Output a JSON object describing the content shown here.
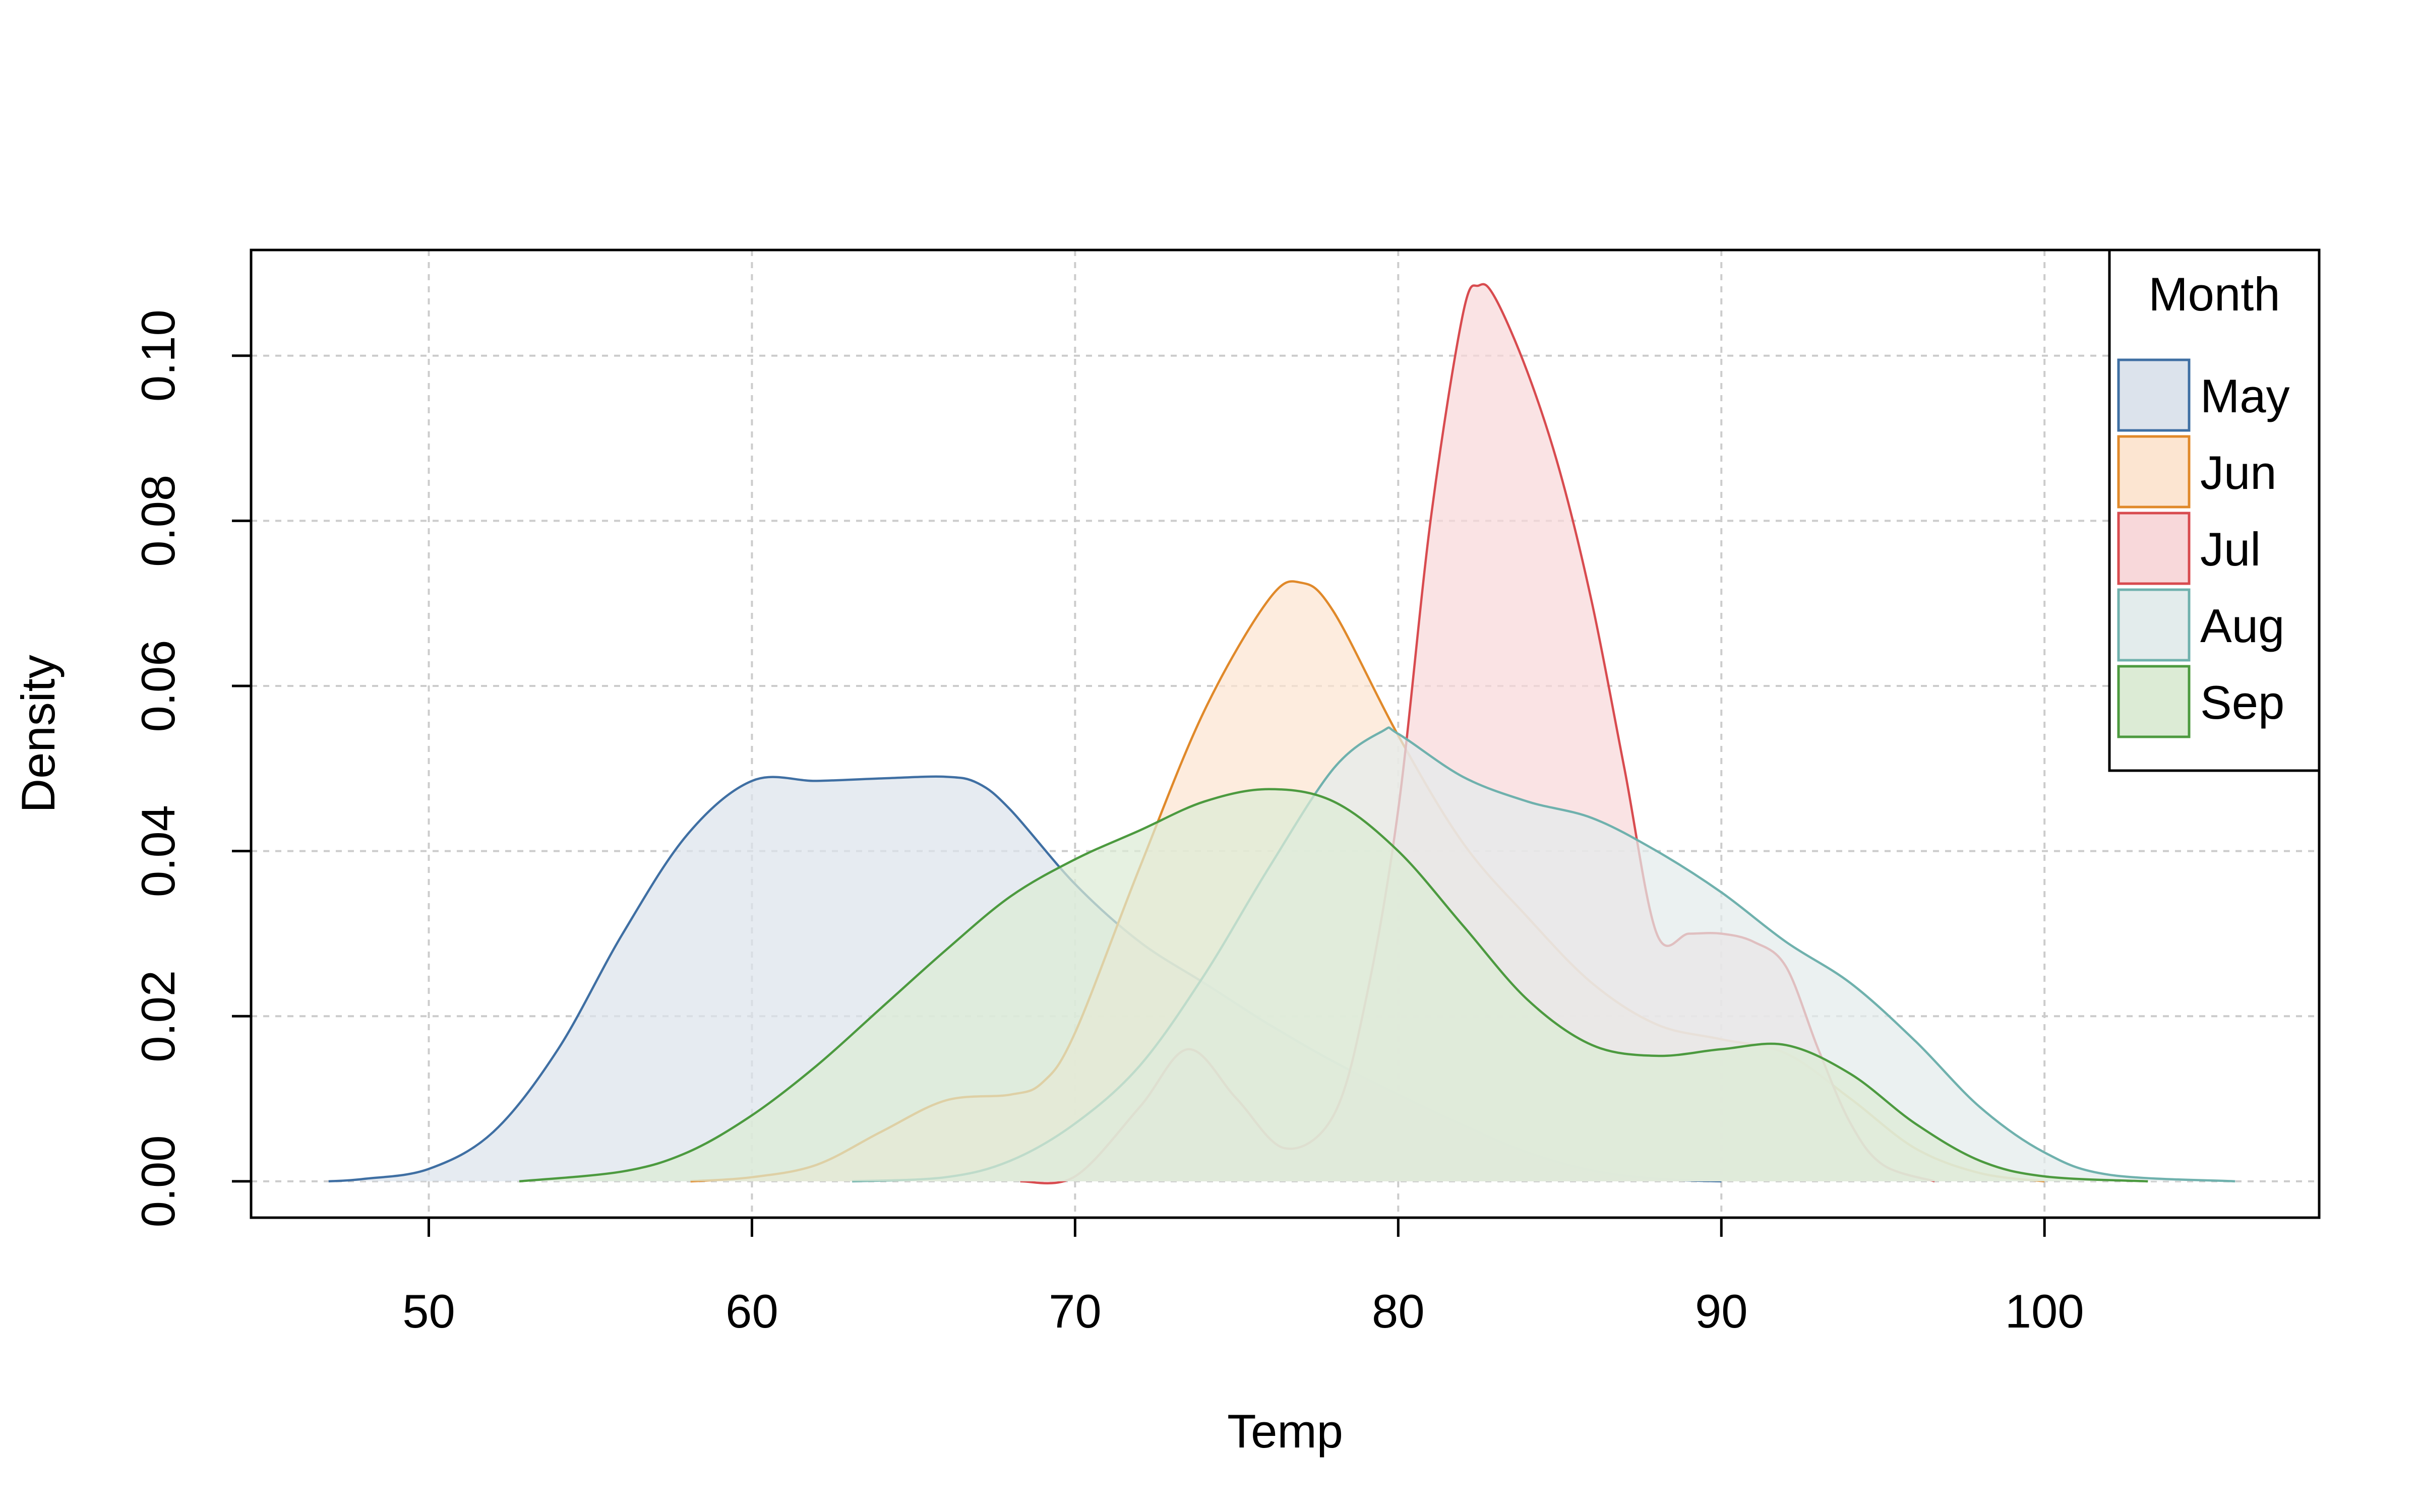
{
  "chart_data": {
    "type": "area",
    "title": "",
    "xlabel": "Temp",
    "ylabel": "Density",
    "xlim": [
      44.5,
      108.5
    ],
    "ylim": [
      -0.0044,
      0.1128
    ],
    "xticks": [
      50,
      60,
      70,
      80,
      90,
      100
    ],
    "xtick_labels": [
      "50",
      "60",
      "70",
      "80",
      "90",
      "100"
    ],
    "yticks": [
      0.0,
      0.02,
      0.04,
      0.06,
      0.08,
      0.1
    ],
    "ytick_labels": [
      "0.00",
      "0.02",
      "0.04",
      "0.06",
      "0.08",
      "0.10"
    ],
    "grid": true,
    "legend": {
      "title": "Month",
      "position": "top-right"
    },
    "series": [
      {
        "name": "May",
        "color": "#3f6fa3",
        "fill": "#dce3ec",
        "points": [
          [
            46.9,
            0.0
          ],
          [
            48,
            0.0003
          ],
          [
            50,
            0.0015
          ],
          [
            52,
            0.006
          ],
          [
            54,
            0.016
          ],
          [
            56,
            0.03
          ],
          [
            58,
            0.042
          ],
          [
            60,
            0.0485
          ],
          [
            62,
            0.0485
          ],
          [
            64,
            0.0488
          ],
          [
            66,
            0.049
          ],
          [
            67,
            0.0482
          ],
          [
            68,
            0.045
          ],
          [
            70,
            0.036
          ],
          [
            72,
            0.029
          ],
          [
            74,
            0.024
          ],
          [
            76,
            0.019
          ],
          [
            78,
            0.0145
          ],
          [
            80,
            0.0105
          ],
          [
            82,
            0.0068
          ],
          [
            84,
            0.0035
          ],
          [
            86,
            0.0013
          ],
          [
            88,
            0.0003
          ],
          [
            90,
            0.0
          ]
        ]
      },
      {
        "name": "Jun",
        "color": "#e0892a",
        "fill": "#fce5d1",
        "points": [
          [
            58.1,
            0.0
          ],
          [
            60,
            0.0005
          ],
          [
            62,
            0.002
          ],
          [
            64,
            0.006
          ],
          [
            66,
            0.0098
          ],
          [
            68,
            0.0105
          ],
          [
            69,
            0.012
          ],
          [
            70,
            0.018
          ],
          [
            72,
            0.038
          ],
          [
            74,
            0.057
          ],
          [
            76,
            0.0705
          ],
          [
            77,
            0.0725
          ],
          [
            78,
            0.069
          ],
          [
            80,
            0.054
          ],
          [
            82,
            0.041
          ],
          [
            84,
            0.032
          ],
          [
            86,
            0.024
          ],
          [
            88,
            0.019
          ],
          [
            90,
            0.0172
          ],
          [
            92,
            0.0155
          ],
          [
            94,
            0.01
          ],
          [
            96,
            0.004
          ],
          [
            98,
            0.001
          ],
          [
            100,
            0.0
          ]
        ]
      },
      {
        "name": "Jul",
        "color": "#d84b4f",
        "fill": "#f8d8da",
        "points": [
          [
            68.3,
            0.0
          ],
          [
            70,
            0.0006
          ],
          [
            72,
            0.009
          ],
          [
            73.5,
            0.016
          ],
          [
            75,
            0.01
          ],
          [
            76.5,
            0.004
          ],
          [
            78,
            0.008
          ],
          [
            79,
            0.022
          ],
          [
            80,
            0.045
          ],
          [
            81,
            0.08
          ],
          [
            82,
            0.105
          ],
          [
            82.5,
            0.1085
          ],
          [
            83,
            0.107
          ],
          [
            84,
            0.098
          ],
          [
            85,
            0.086
          ],
          [
            86,
            0.07
          ],
          [
            87,
            0.05
          ],
          [
            88,
            0.03
          ],
          [
            89,
            0.03
          ],
          [
            90,
            0.03
          ],
          [
            91,
            0.029
          ],
          [
            92,
            0.026
          ],
          [
            93,
            0.016
          ],
          [
            94,
            0.007
          ],
          [
            95,
            0.002
          ],
          [
            96.6,
            0.0
          ]
        ]
      },
      {
        "name": "Aug",
        "color": "#6fb1ad",
        "fill": "#e3ecec",
        "points": [
          [
            63.1,
            0.0
          ],
          [
            66,
            0.0005
          ],
          [
            68,
            0.0025
          ],
          [
            70,
            0.007
          ],
          [
            72,
            0.014
          ],
          [
            74,
            0.025
          ],
          [
            76,
            0.038
          ],
          [
            78,
            0.05
          ],
          [
            79.5,
            0.0545
          ],
          [
            80,
            0.0542
          ],
          [
            82,
            0.049
          ],
          [
            84,
            0.046
          ],
          [
            86,
            0.044
          ],
          [
            88,
            0.04
          ],
          [
            90,
            0.035
          ],
          [
            92,
            0.029
          ],
          [
            94,
            0.024
          ],
          [
            96,
            0.017
          ],
          [
            98,
            0.009
          ],
          [
            100,
            0.0035
          ],
          [
            102,
            0.0008
          ],
          [
            105.9,
            0.0
          ]
        ]
      },
      {
        "name": "Sep",
        "color": "#4c9a3f",
        "fill": "#dcebd5",
        "points": [
          [
            52.8,
            0.0
          ],
          [
            56,
            0.0012
          ],
          [
            58,
            0.0035
          ],
          [
            60,
            0.008
          ],
          [
            62,
            0.014
          ],
          [
            64,
            0.021
          ],
          [
            66,
            0.028
          ],
          [
            68,
            0.0345
          ],
          [
            70,
            0.039
          ],
          [
            72,
            0.0425
          ],
          [
            74,
            0.046
          ],
          [
            76,
            0.0475
          ],
          [
            78,
            0.046
          ],
          [
            80,
            0.04
          ],
          [
            82,
            0.031
          ],
          [
            84,
            0.022
          ],
          [
            86,
            0.0165
          ],
          [
            88,
            0.0152
          ],
          [
            90,
            0.016
          ],
          [
            92,
            0.0165
          ],
          [
            94,
            0.013
          ],
          [
            96,
            0.007
          ],
          [
            98,
            0.0025
          ],
          [
            100,
            0.0006
          ],
          [
            103.2,
            0.0
          ]
        ]
      }
    ]
  }
}
